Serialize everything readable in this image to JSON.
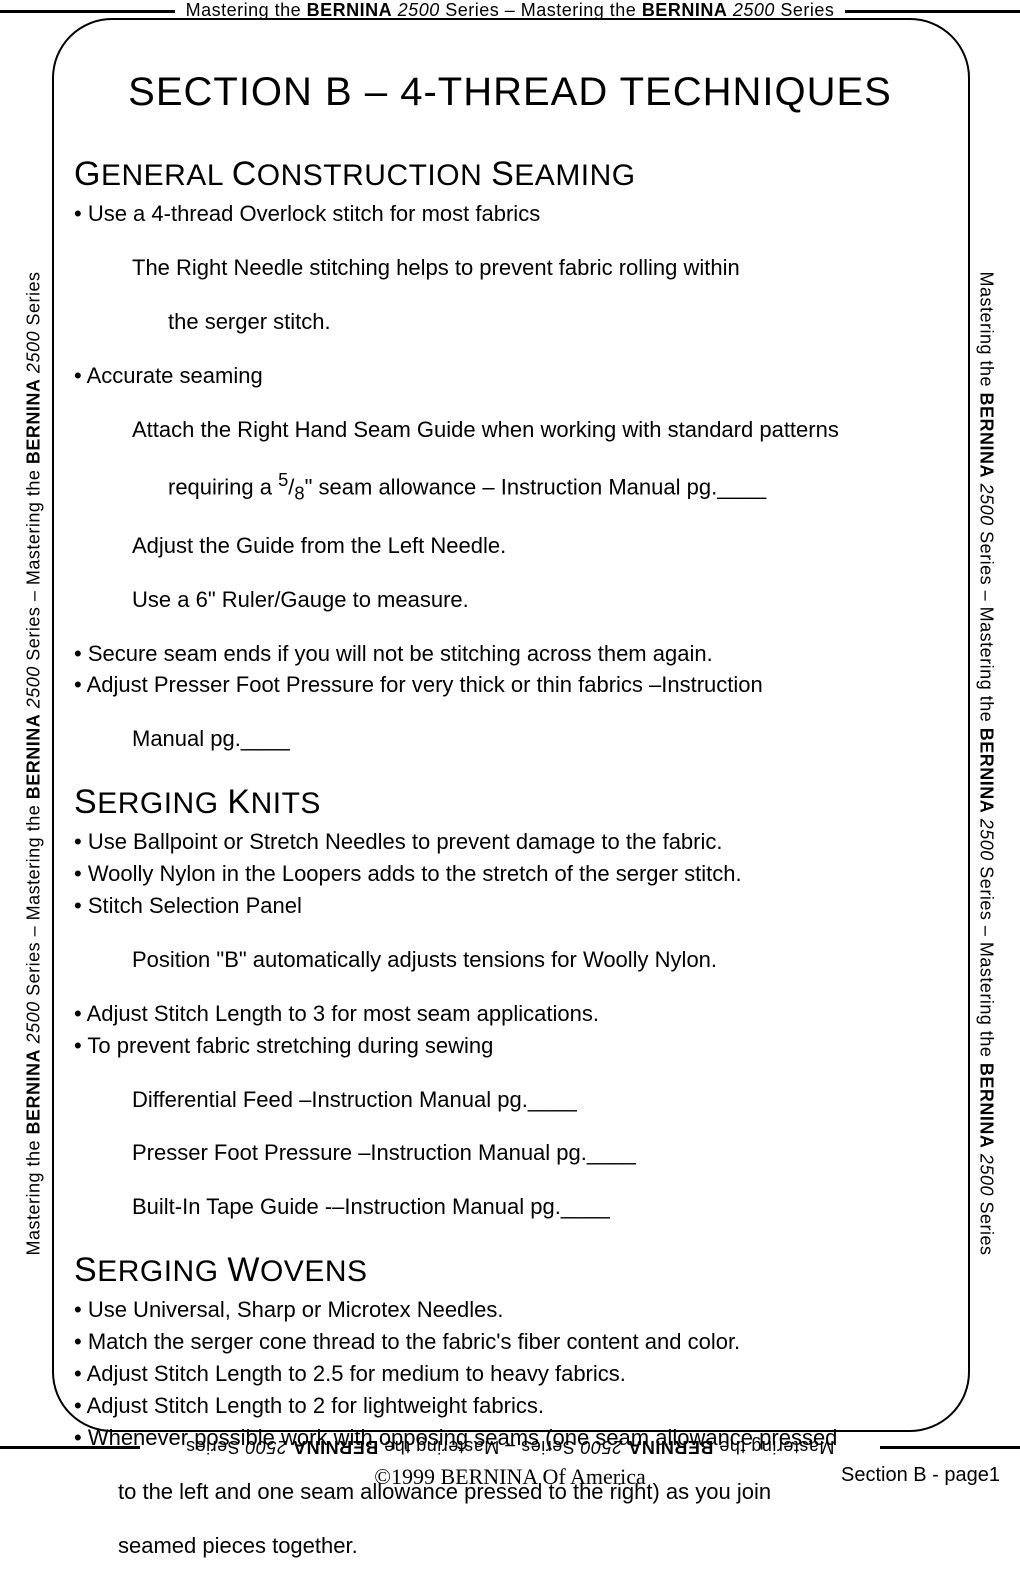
{
  "border_label_html": "Mastering the <span class='b'>BERNINA</span> <span class='i'>2500</span> Series – Mastering the <span class='b'>BERNINA</span> <span class='i'>2500</span> Series",
  "border_label_long_html": "Mastering the <span class='b'>BERNINA</span> <span class='i'>2500</span> Series – Mastering the <span class='b'>BERNINA</span> <span class='i'>2500</span> Series – Mastering the <span class='b'>BERNINA</span> <span class='i'>2500</span> Series",
  "title": "SECTION B – 4-THREAD TECHNIQUES",
  "sections": [
    {
      "heading_html": "<span class='cap'>G</span>ENERAL <span class='cap'>C</span>ONSTRUCTION <span class='cap'>S</span>EAMING",
      "lines": [
        {
          "cls": "bul",
          "text": "• Use a 4-thread Overlock stitch for most fabrics"
        },
        {
          "cls": "sub1",
          "text": "The Right Needle stitching helps to prevent fabric rolling within"
        },
        {
          "cls": "sub2",
          "text": "the serger stitch."
        },
        {
          "cls": "bul",
          "text": "• Accurate seaming"
        },
        {
          "cls": "sub1",
          "text": "Attach the Right Hand Seam Guide when working with standard patterns"
        },
        {
          "cls": "sub2",
          "html": "requiring a <sup>5</sup>/<sub>8</sub>\" seam allowance – Instruction Manual pg.____"
        },
        {
          "cls": "sub1",
          "text": "Adjust the Guide from the Left Needle."
        },
        {
          "cls": "sub1",
          "text": "Use a 6\" Ruler/Gauge to measure."
        },
        {
          "cls": "bul",
          "text": "• Secure seam ends if you will not be stitching across them again."
        },
        {
          "cls": "bul",
          "text": "• Adjust Presser Foot Pressure for very thick or thin fabrics –Instruction"
        },
        {
          "cls": "sub1",
          "text": "Manual pg.____"
        }
      ]
    },
    {
      "heading_html": "<span class='cap'>S</span>ERGING <span class='cap'>K</span>NITS",
      "lines": [
        {
          "cls": "bul",
          "text": "• Use Ballpoint or Stretch Needles to prevent damage to the fabric."
        },
        {
          "cls": "bul",
          "text": "• Woolly Nylon in the Loopers adds to the stretch of the serger stitch."
        },
        {
          "cls": "bul",
          "text": "• Stitch Selection Panel"
        },
        {
          "cls": "sub1",
          "text": "Position \"B\" automatically adjusts tensions for Woolly Nylon."
        },
        {
          "cls": "bul",
          "text": "• Adjust Stitch Length to 3 for most seam applications."
        },
        {
          "cls": "bul",
          "text": "• To prevent fabric stretching during sewing"
        },
        {
          "cls": "sub1",
          "text": "Differential Feed –Instruction Manual pg.____"
        },
        {
          "cls": "sub1",
          "text": "Presser Foot Pressure  –Instruction Manual pg.____"
        },
        {
          "cls": "sub1",
          "text": "Built-In Tape Guide -–Instruction Manual pg.____"
        }
      ]
    },
    {
      "heading_html": "<span class='cap'>S</span>ERGING <span class='cap'>W</span>OVENS",
      "lines": [
        {
          "cls": "bul",
          "text": "• Use Universal, Sharp or Microtex Needles."
        },
        {
          "cls": "bul",
          "text": "• Match the serger cone thread to the fabric's fiber content and color."
        },
        {
          "cls": "bul",
          "text": "• Adjust Stitch Length to 2.5 for medium to heavy fabrics."
        },
        {
          "cls": "bul",
          "text": "• Adjust Stitch Length to 2 for lightweight fabrics."
        },
        {
          "cls": "bul",
          "text": "• Whenever possible work with opposing seams (one seam allowance pressed"
        },
        {
          "cls": "cont",
          "text": "to the left and one seam allowance pressed to the right) as you join"
        },
        {
          "cls": "cont",
          "text": "seamed pieces together."
        }
      ]
    }
  ],
  "footer": {
    "copyright": "©1999 BERNINA Of America",
    "page": "Section B - page1"
  },
  "colors": {
    "text": "#000000",
    "background": "#ffffff",
    "border": "#000000"
  },
  "typography": {
    "title_fontsize": 40,
    "heading_fontsize": 30,
    "heading_cap_fontsize": 34,
    "body_fontsize": 22,
    "border_fontsize": 18,
    "footer_fontsize": 20
  }
}
